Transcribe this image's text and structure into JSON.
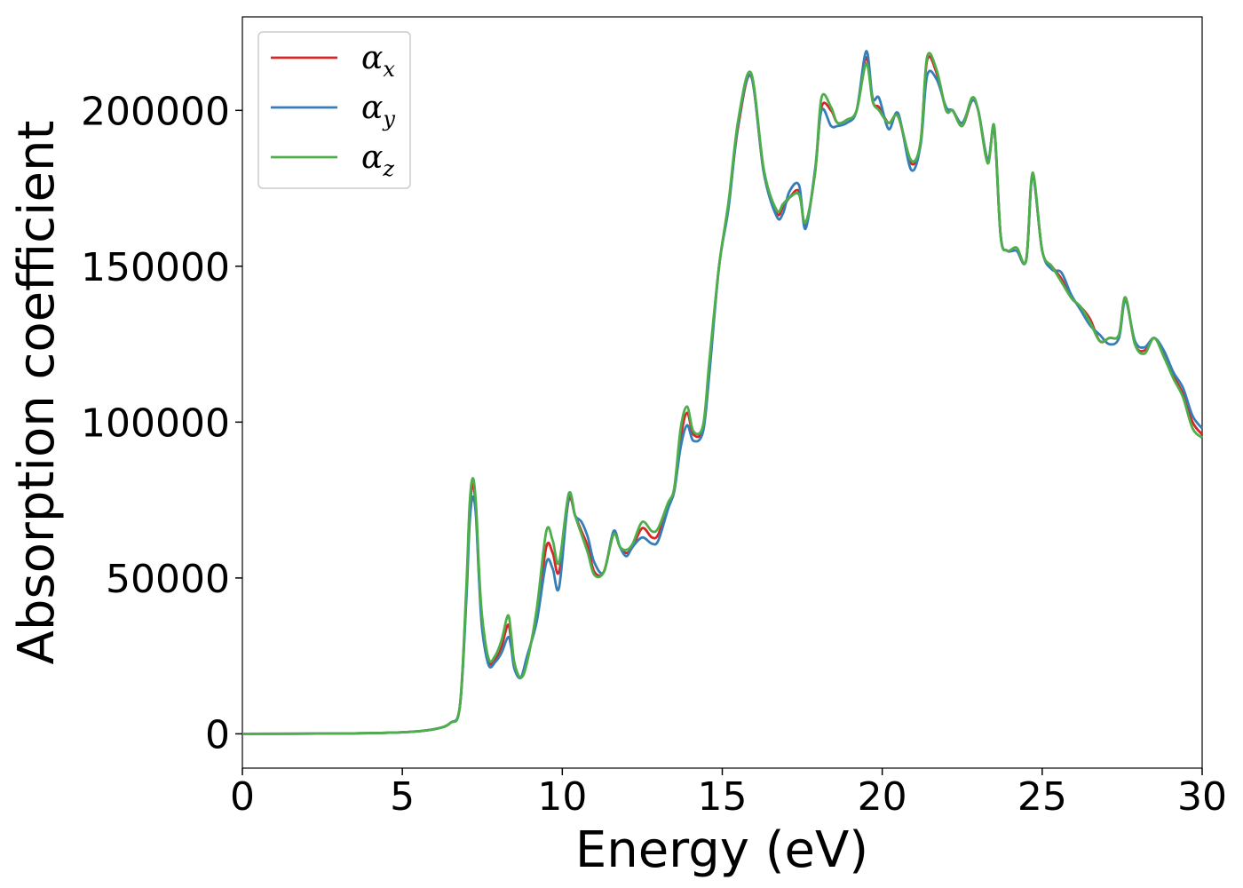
{
  "chart_data": {
    "type": "line",
    "xlabel": "Energy (eV)",
    "ylabel": "Absorption coefficient",
    "xlim": [
      0,
      30
    ],
    "ylim": [
      -11000,
      230000
    ],
    "xticks": [
      0,
      5,
      10,
      15,
      20,
      25,
      30
    ],
    "yticks": [
      0,
      50000,
      100000,
      150000,
      200000
    ],
    "xtick_labels": [
      "0",
      "5",
      "10",
      "15",
      "20",
      "25",
      "30"
    ],
    "ytick_labels": [
      "0",
      "50000",
      "100000",
      "150000",
      "200000"
    ],
    "grid": false,
    "legend_position": "top-left",
    "x": [
      0,
      3,
      5,
      6,
      6.5,
      6.8,
      7.0,
      7.1,
      7.2,
      7.3,
      7.4,
      7.5,
      7.7,
      7.9,
      8.1,
      8.3,
      8.4,
      8.5,
      8.7,
      8.9,
      9.2,
      9.5,
      9.7,
      9.9,
      10.2,
      10.4,
      10.6,
      10.8,
      11.0,
      11.3,
      11.6,
      11.8,
      12.0,
      12.2,
      12.5,
      12.8,
      13.0,
      13.3,
      13.5,
      13.7,
      13.9,
      14.1,
      14.4,
      14.6,
      14.9,
      15.2,
      15.5,
      15.9,
      16.3,
      16.7,
      16.9,
      17.1,
      17.4,
      17.6,
      17.9,
      18.1,
      18.4,
      18.6,
      18.9,
      19.2,
      19.5,
      19.7,
      19.9,
      20.2,
      20.5,
      20.9,
      21.2,
      21.4,
      21.7,
      22.0,
      22.2,
      22.5,
      22.8,
      23.0,
      23.3,
      23.5,
      23.7,
      23.9,
      24.2,
      24.5,
      24.7,
      25.0,
      25.3,
      25.6,
      25.9,
      26.2,
      26.5,
      26.8,
      27.1,
      27.4,
      27.6,
      27.9,
      28.2,
      28.5,
      28.8,
      29.1,
      29.4,
      29.7,
      30.0
    ],
    "series": [
      {
        "name": "α_x",
        "color": "#d62728",
        "values": [
          0,
          100,
          500,
          1500,
          3500,
          9000,
          45000,
          70000,
          80000,
          72000,
          50000,
          35000,
          23000,
          24000,
          28000,
          35000,
          30000,
          22000,
          18000,
          24000,
          38000,
          60000,
          58000,
          52000,
          75000,
          70000,
          65000,
          60000,
          52000,
          52000,
          64000,
          60000,
          58000,
          60000,
          66000,
          63000,
          64000,
          73000,
          78000,
          95000,
          103000,
          96000,
          98000,
          118000,
          150000,
          170000,
          195000,
          211000,
          180000,
          167000,
          169000,
          172000,
          174000,
          163000,
          180000,
          201000,
          200000,
          196000,
          197000,
          200000,
          217000,
          203000,
          201000,
          196000,
          198000,
          183000,
          190000,
          216000,
          212000,
          200000,
          200000,
          195000,
          203000,
          200000,
          184000,
          194000,
          160000,
          155000,
          155000,
          152000,
          179000,
          155000,
          150000,
          146000,
          140000,
          137000,
          133000,
          126000,
          127000,
          128000,
          140000,
          125000,
          123000,
          127000,
          122000,
          115000,
          109000,
          100000,
          96000
        ]
      },
      {
        "name": "α_y",
        "color": "#377eb8",
        "values": [
          0,
          100,
          500,
          1500,
          3500,
          9000,
          43000,
          67000,
          76000,
          70000,
          49000,
          33000,
          22000,
          23000,
          26000,
          31000,
          28000,
          21000,
          18000,
          25000,
          36000,
          55000,
          53000,
          47000,
          76000,
          70000,
          68000,
          63000,
          55000,
          52000,
          65000,
          60000,
          57000,
          60000,
          63000,
          61000,
          62000,
          72000,
          78000,
          92000,
          99000,
          94000,
          97000,
          116000,
          150000,
          169000,
          196000,
          211000,
          180000,
          166000,
          167000,
          174000,
          176000,
          162000,
          181000,
          200000,
          195000,
          195000,
          196000,
          200000,
          219000,
          204000,
          204000,
          194000,
          199000,
          181000,
          189000,
          211000,
          210000,
          201000,
          200000,
          196000,
          203000,
          200000,
          184000,
          194000,
          160000,
          155000,
          155000,
          152000,
          179000,
          155000,
          149000,
          148000,
          141000,
          136000,
          131000,
          128000,
          125000,
          127000,
          139000,
          126000,
          124000,
          127000,
          123000,
          116000,
          111000,
          102000,
          98000
        ]
      },
      {
        "name": "α_z",
        "color": "#4daf4a",
        "values": [
          0,
          100,
          500,
          1500,
          3500,
          9000,
          47000,
          73000,
          82000,
          74000,
          52000,
          37000,
          24000,
          25000,
          30000,
          38000,
          32000,
          23000,
          18000,
          23000,
          40000,
          65000,
          62000,
          55000,
          77000,
          70000,
          64000,
          58000,
          51000,
          52000,
          64000,
          60000,
          59000,
          61000,
          68000,
          65000,
          66000,
          74000,
          79000,
          98000,
          105000,
          97000,
          99000,
          120000,
          150000,
          171000,
          197000,
          212000,
          181000,
          168000,
          170000,
          172000,
          173000,
          164000,
          180000,
          204000,
          201000,
          196000,
          197000,
          200000,
          215000,
          203000,
          200000,
          196000,
          198000,
          184000,
          190000,
          217000,
          213000,
          200000,
          200000,
          195000,
          204000,
          200000,
          183000,
          195000,
          160000,
          155000,
          156000,
          152000,
          180000,
          155000,
          150000,
          145000,
          140000,
          137000,
          132000,
          126000,
          127000,
          128000,
          140000,
          125000,
          122000,
          127000,
          121000,
          114000,
          108000,
          98000,
          95000
        ]
      }
    ]
  }
}
